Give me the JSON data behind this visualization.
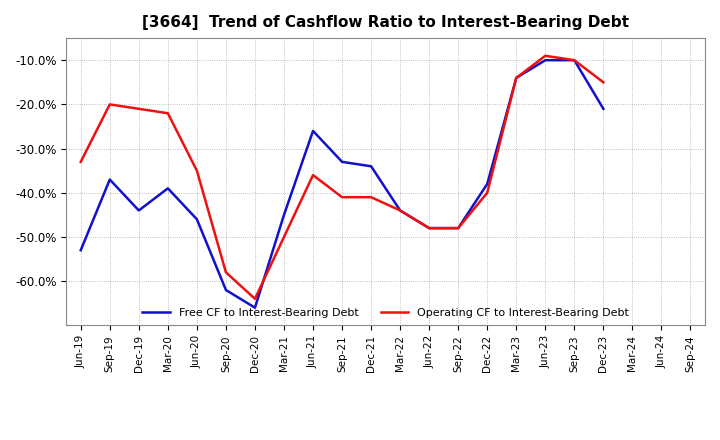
{
  "title": "[3664]  Trend of Cashflow Ratio to Interest-Bearing Debt",
  "x_labels": [
    "Jun-19",
    "Sep-19",
    "Dec-19",
    "Mar-20",
    "Jun-20",
    "Sep-20",
    "Dec-20",
    "Mar-21",
    "Jun-21",
    "Sep-21",
    "Dec-21",
    "Mar-22",
    "Jun-22",
    "Sep-22",
    "Dec-22",
    "Mar-23",
    "Jun-23",
    "Sep-23",
    "Dec-23",
    "Mar-24",
    "Jun-24",
    "Sep-24"
  ],
  "operating_cf": [
    -33.0,
    -20.0,
    -21.0,
    -22.0,
    -35.0,
    -58.0,
    -64.0,
    -50.0,
    -36.0,
    -41.0,
    -41.0,
    -44.0,
    -48.0,
    -48.0,
    -40.0,
    -14.0,
    -9.0,
    -10.0,
    -15.0,
    null,
    null,
    null
  ],
  "free_cf": [
    -53.0,
    -37.0,
    -44.0,
    -39.0,
    -46.0,
    -62.0,
    -66.0,
    -45.0,
    -26.0,
    -33.0,
    -34.0,
    -44.0,
    -48.0,
    -48.0,
    -38.0,
    -14.0,
    -10.0,
    -10.0,
    -21.0,
    null,
    null,
    null
  ],
  "operating_color": "#EE1111",
  "free_color": "#1111CC",
  "ylim_min": -70,
  "ylim_max": -5,
  "yticks": [
    -10,
    -20,
    -30,
    -40,
    -50,
    -60
  ],
  "ytick_labels": [
    "-10.0%",
    "-20.0%",
    "-30.0%",
    "-40.0%",
    "-50.0%",
    "-60.0%"
  ],
  "legend_operating": "Operating CF to Interest-Bearing Debt",
  "legend_free": "Free CF to Interest-Bearing Debt",
  "background_color": "#FFFFFF",
  "grid_color": "#AAAAAA",
  "line_width": 1.8,
  "title_fontsize": 11
}
